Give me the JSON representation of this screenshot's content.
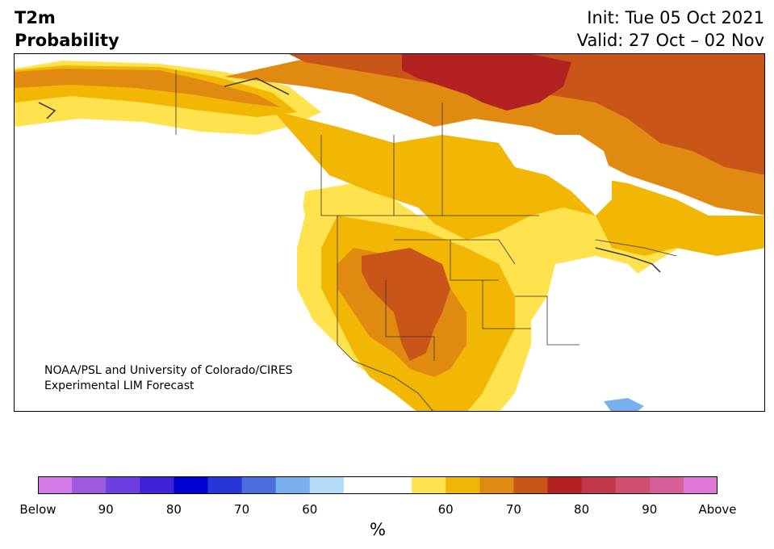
{
  "header": {
    "title_line1": "T2m",
    "title_line2": "Probability",
    "init": "Init: Tue 05 Oct 2021",
    "valid": "Valid: 27 Oct – 02 Nov"
  },
  "credit": {
    "line1": "NOAA/PSL and University of Colorado/CIRES",
    "line2": "Experimental LIM Forecast"
  },
  "colorbar": {
    "unit": "%",
    "bins": [
      "#d57ae9",
      "#9b5ae0",
      "#6d3fe0",
      "#3e23d8",
      "#0000d0",
      "#2636d8",
      "#4a6fe0",
      "#78b0ee",
      "#b3dcf8",
      "#ffffff",
      "#ffffff",
      "#ffe24d",
      "#f2b705",
      "#e08a12",
      "#c95519",
      "#b22222",
      "#c2374a",
      "#cf4f6f",
      "#d65f99",
      "#e178d9"
    ],
    "ticks": [
      "Below",
      "90",
      "80",
      "70",
      "60",
      "",
      "60",
      "70",
      "80",
      "90",
      "Above"
    ]
  },
  "map": {
    "below_colors": {
      "light_blue": "#78b0ee"
    },
    "above_colors": {
      "p50_60": "#ffe24d",
      "p60_70": "#f2b705",
      "p70_80": "#e08a12",
      "p80_90": "#c95519",
      "p90_above": "#b22222"
    }
  }
}
